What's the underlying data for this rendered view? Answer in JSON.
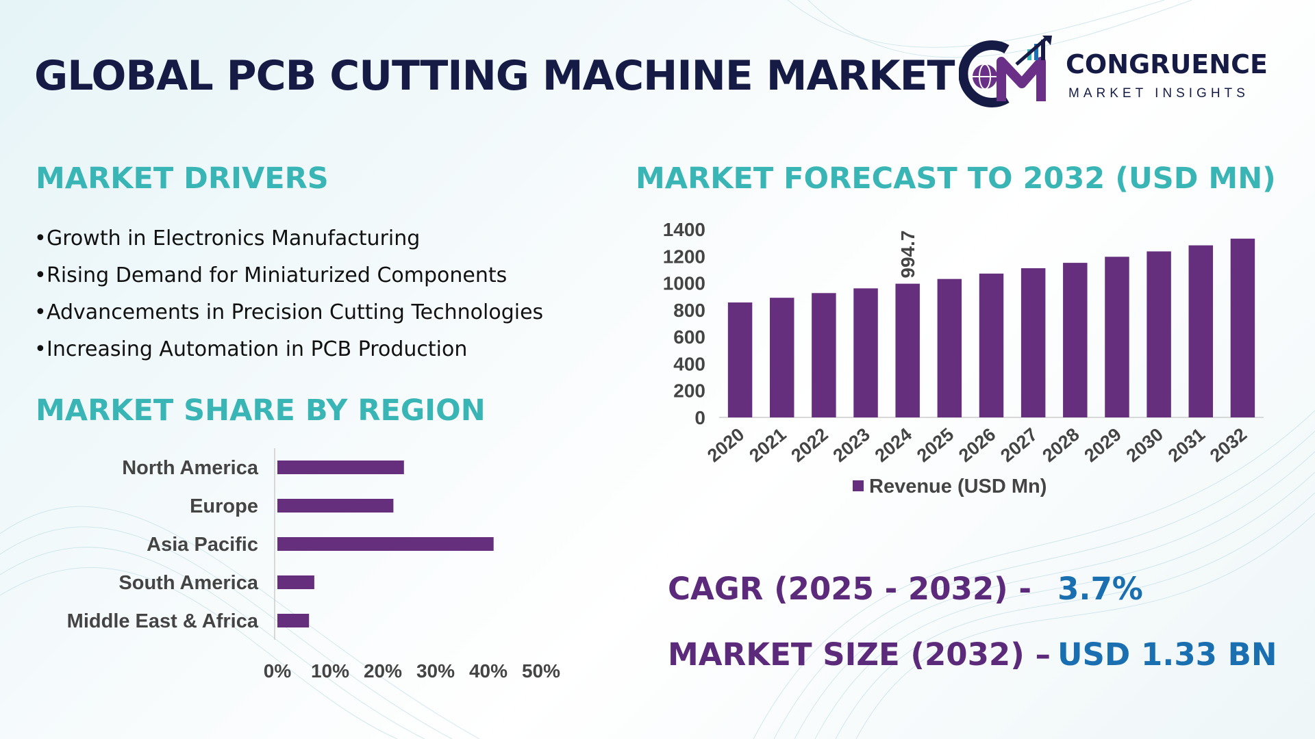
{
  "title": "GLOBAL PCB CUTTING MACHINE MARKET",
  "logo": {
    "name": "CONGRUENCE",
    "tagline": "MARKET INSIGHTS",
    "icon": "cm-globe-growth-logo"
  },
  "colors": {
    "bar": "#652f7d",
    "heading": "#3ab5b5",
    "title": "#161b45",
    "kpi_label": "#5c2a7a",
    "kpi_value": "#1a6fb0"
  },
  "drivers": {
    "title": "MARKET DRIVERS",
    "items": [
      "Growth in Electronics Manufacturing",
      "Rising Demand for Miniaturized Components",
      "Advancements in Precision Cutting Technologies",
      "Increasing Automation in PCB Production"
    ]
  },
  "region": {
    "title": "MARKET SHARE BY REGION"
  },
  "forecast": {
    "title": "MARKET FORECAST TO 2032 (USD MN)"
  },
  "cagr": {
    "label": "CAGR (2025 - 2032) -",
    "value": "3.7%"
  },
  "market_size": {
    "label": "MARKET SIZE (2032) –",
    "value": "USD 1.33 BN"
  },
  "chart_data": [
    {
      "type": "bar",
      "orientation": "vertical",
      "categories": [
        "2020",
        "2021",
        "2022",
        "2023",
        "2024",
        "2025",
        "2026",
        "2027",
        "2028",
        "2029",
        "2030",
        "2031",
        "2032"
      ],
      "series": [
        {
          "name": "Revenue (USD Mn)",
          "values": [
            855,
            890,
            925,
            960,
            994.7,
            1030,
            1070,
            1110,
            1150,
            1195,
            1235,
            1280,
            1330
          ]
        }
      ],
      "data_labels": [
        {
          "category": "2024",
          "text": "994.7"
        }
      ],
      "ylim": [
        0,
        1400
      ],
      "yticks": [
        0,
        200,
        400,
        600,
        800,
        1000,
        1200,
        1400
      ],
      "legend": "bottom-center",
      "grid": false
    },
    {
      "type": "bar",
      "orientation": "horizontal",
      "categories": [
        "North America",
        "Europe",
        "Asia Pacific",
        "South America",
        "Middle East & Africa"
      ],
      "values": [
        24,
        22,
        41,
        7,
        6
      ],
      "unit": "%",
      "xlim": [
        0,
        50
      ],
      "xticks": [
        "0%",
        "10%",
        "20%",
        "30%",
        "40%",
        "50%"
      ],
      "grid": false
    }
  ]
}
